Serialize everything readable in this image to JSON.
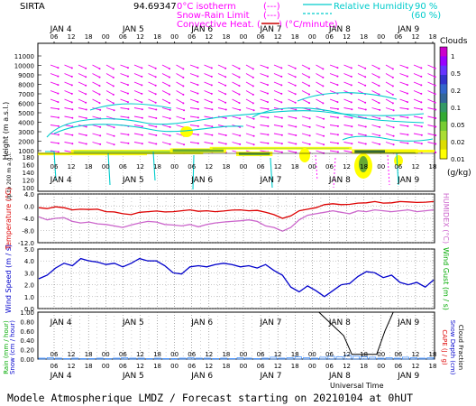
{
  "header": {
    "station": "SIRTA",
    "altitude_label": "94.69347",
    "legend_left": [
      {
        "label": "0°C isotherm",
        "marker": "(---)",
        "color": "#ff00ff"
      },
      {
        "label": "Snow-Rain Limit",
        "marker": "(---)",
        "color": "#ff00ff"
      },
      {
        "label": "Convective Heat. (",
        "marker": "----",
        "suffix": ") (°C/minute)",
        "color": "#ff00ff",
        "marker_color": "#cc0000"
      }
    ],
    "legend_right": [
      {
        "label": "Relative Humidity",
        "value": "90 %",
        "color": "#00cccc"
      },
      {
        "label": "",
        "value": "(60 %)",
        "color": "#00cccc"
      }
    ]
  },
  "time_axis": {
    "hour_ticks": [
      "06",
      "12",
      "18",
      "00",
      "06",
      "12",
      "18",
      "00",
      "06",
      "12",
      "18",
      "00",
      "06",
      "12",
      "18",
      "00",
      "06",
      "12",
      "18",
      "00",
      "06",
      "12",
      "18"
    ],
    "days": [
      "JAN 4",
      "JAN 5",
      "JAN 6",
      "JAN 7",
      "JAN 8",
      "JAN 9"
    ],
    "xlabel": "Universal Time"
  },
  "colorbar": {
    "title": "Clouds",
    "ticks": [
      "1",
      "0.5",
      "0.2",
      "0.1",
      "0.05",
      "0.02",
      "0.01"
    ],
    "unit": "(g/kg)",
    "colors": [
      "#cc00cc",
      "#9900ff",
      "#6633ff",
      "#3333cc",
      "#3366cc",
      "#336699",
      "#339966",
      "#33aa33",
      "#77cc33",
      "#aadd33",
      "#dddd00",
      "#ffff00"
    ]
  },
  "footer": "Modele Atmospherique LMDZ / Forecast starting on 20210104 at 0hUT",
  "chart_data": [
    {
      "type": "heatmap",
      "panel": "clouds",
      "ylabel": "Height (m a.s.l.)",
      "ylabel2": "Up to 200 m a.g.l.",
      "y_ticks_upper": [
        "11000",
        "10000",
        "9000",
        "8000",
        "7000",
        "6000",
        "5000",
        "4000",
        "3000",
        "2000",
        "1000"
      ],
      "y_ticks_lower": [
        "180",
        "160",
        "140",
        "120",
        "100"
      ],
      "cloud_layers": [
        {
          "x_start": 0,
          "x_end": 33,
          "height_m": 800,
          "thickness": "thin",
          "intensity": 0.05
        },
        {
          "x_start": 10,
          "x_end": 50,
          "height_m": 1100,
          "thickness": "medium",
          "intensity": 0.1
        },
        {
          "x_start": 40,
          "x_end": 57,
          "height_m": 1250,
          "thickness": "medium",
          "intensity": 0.2
        },
        {
          "x_start": 52,
          "x_end": 95,
          "height_m": 1400,
          "thickness": "thin",
          "intensity": 0.1
        },
        {
          "x_start": 60,
          "x_end": 71,
          "height_m": 900,
          "thickness": "medium",
          "intensity": 0.2
        },
        {
          "x_start": 95,
          "x_end": 115,
          "height_m": 1150,
          "thickness": "medium",
          "intensity": 0.5
        },
        {
          "x_start": 105,
          "x_end": 120,
          "height_m": 1100,
          "thickness": "thin",
          "intensity": 0.05
        }
      ]
    },
    {
      "type": "line",
      "panel": "temperature",
      "ylabel": "Temperature (°C)",
      "ylabel_right": "HUMIDEX (°C)",
      "y_ticks": [
        "4.0",
        "0.0",
        "-4.0",
        "-8.0",
        "-12.0"
      ],
      "ylim": [
        -12,
        4
      ],
      "series": [
        {
          "color": "#dd0000",
          "values": [
            -0.5,
            -0.8,
            -0.2,
            -0.5,
            -1.2,
            -1.0,
            -1.1,
            -1.0,
            -1.8,
            -1.9,
            -2.5,
            -2.8,
            -2.0,
            -1.8,
            -1.6,
            -1.9,
            -1.8,
            -1.5,
            -1.2,
            -1.7,
            -1.5,
            -1.8,
            -1.6,
            -1.3,
            -1.2,
            -1.5,
            -1.4,
            -2.0,
            -2.8,
            -4.0,
            -3.2,
            -1.5,
            -1.0,
            -0.5,
            0.5,
            0.8,
            0.5,
            0.6,
            1.0,
            1.1,
            1.5,
            1.0,
            1.1,
            1.5,
            1.4,
            1.2,
            1.3,
            1.5
          ]
        },
        {
          "color": "#cc66cc",
          "values": [
            -3.5,
            -4.5,
            -4.0,
            -3.8,
            -5.0,
            -5.5,
            -5.2,
            -5.8,
            -6.0,
            -6.5,
            -7.0,
            -6.2,
            -5.5,
            -5.0,
            -5.2,
            -6.0,
            -6.2,
            -6.5,
            -6.0,
            -6.8,
            -6.0,
            -5.5,
            -5.2,
            -5.0,
            -4.8,
            -4.5,
            -5.0,
            -6.5,
            -7.0,
            -8.2,
            -7.0,
            -4.5,
            -3.0,
            -2.5,
            -2.0,
            -1.5,
            -2.0,
            -2.5,
            -1.5,
            -1.8,
            -1.2,
            -1.5,
            -1.8,
            -1.5,
            -1.2,
            -1.8,
            -1.5,
            -1.2
          ]
        }
      ]
    },
    {
      "type": "line",
      "panel": "wind",
      "ylabel": "Wind Speed (m / s)",
      "ylabel_right": "Wind Gust (m / s)",
      "y_ticks": [
        "5.0",
        "4.0",
        "3.0",
        "2.0",
        "1.0",
        "0.0"
      ],
      "ylim": [
        0,
        5
      ],
      "series": [
        {
          "color": "#0000cc",
          "values": [
            2.5,
            2.8,
            3.4,
            3.8,
            3.6,
            4.2,
            4.0,
            3.9,
            3.7,
            3.8,
            3.5,
            3.8,
            4.2,
            4.0,
            4.0,
            3.6,
            3.0,
            2.9,
            3.5,
            3.6,
            3.5,
            3.7,
            3.8,
            3.7,
            3.5,
            3.6,
            3.4,
            3.7,
            3.2,
            2.8,
            1.8,
            1.4,
            1.9,
            1.5,
            1.0,
            1.5,
            2.0,
            2.1,
            2.7,
            3.1,
            3.0,
            2.6,
            2.8,
            2.2,
            2.0,
            2.2,
            1.8,
            2.4
          ]
        }
      ]
    },
    {
      "type": "bar",
      "panel": "precip",
      "ylabel": "Rain (mm / hour)",
      "ylabel2": "Snow (cm / hour)",
      "ylabel_right": "CAPE (J / g)",
      "ylabel_right2": "Snow Depth (cm)",
      "ylabel_right3": "Cloud Fraction",
      "y_ticks": [
        "1.00",
        "0.80",
        "0.60",
        "0.40",
        "0.20",
        "0.00"
      ],
      "ylim": [
        0,
        1
      ],
      "rain_values": [
        0.02,
        0.03,
        0.02,
        0.01,
        0.02,
        0.01,
        0.01,
        0.02,
        0.01,
        0.02,
        0.03,
        0.02,
        0.02,
        0.01,
        0.02,
        0.01,
        0.01,
        0.02,
        0.03,
        0.02,
        0.02,
        0.01,
        0.02,
        0.01,
        0.03,
        0.02,
        0.01,
        0.02,
        0.04,
        0.02,
        0.03,
        0.05,
        0.03,
        0.02,
        0.04,
        0.06,
        0.05,
        0.08,
        0.06,
        0.05,
        0.04,
        0.02,
        0.03,
        0.02,
        0.04,
        0.03,
        0.02,
        0.03
      ],
      "cloud_fraction_line": [
        {
          "x": 34,
          "y": 1.0
        },
        {
          "x": 37,
          "y": 0.5
        },
        {
          "x": 38,
          "y": 0.1
        },
        {
          "x": 41,
          "y": 0.1
        },
        {
          "x": 42,
          "y": 0.6
        },
        {
          "x": 43,
          "y": 1.0
        }
      ]
    }
  ]
}
